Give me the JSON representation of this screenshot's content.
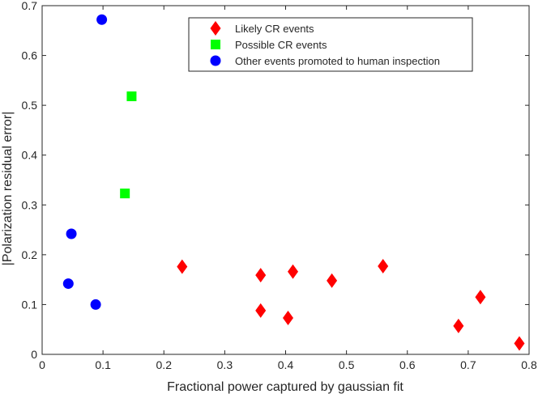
{
  "chart_data": {
    "type": "scatter",
    "title": "",
    "xlabel": "Fractional power captured by gaussian fit",
    "ylabel": "|Polarization residual error|",
    "xlim": [
      0,
      0.8
    ],
    "ylim": [
      0,
      0.7
    ],
    "xticks": [
      "0",
      "0.1",
      "0.2",
      "0.3",
      "0.4",
      "0.5",
      "0.6",
      "0.7",
      "0.8"
    ],
    "yticks": [
      "0",
      "0.1",
      "0.2",
      "0.3",
      "0.4",
      "0.5",
      "0.6",
      "0.7"
    ],
    "grid": false,
    "legend_position": "top-right",
    "series": [
      {
        "name": "Likely CR events",
        "marker": "diamond",
        "color": "#ff0000",
        "points": [
          {
            "x": 0.23,
            "y": 0.176
          },
          {
            "x": 0.359,
            "y": 0.159
          },
          {
            "x": 0.359,
            "y": 0.088
          },
          {
            "x": 0.412,
            "y": 0.166
          },
          {
            "x": 0.404,
            "y": 0.073
          },
          {
            "x": 0.476,
            "y": 0.148
          },
          {
            "x": 0.56,
            "y": 0.177
          },
          {
            "x": 0.684,
            "y": 0.057
          },
          {
            "x": 0.72,
            "y": 0.115
          },
          {
            "x": 0.784,
            "y": 0.022
          }
        ]
      },
      {
        "name": "Possible CR events",
        "marker": "square",
        "color": "#00ff00",
        "points": [
          {
            "x": 0.147,
            "y": 0.518
          },
          {
            "x": 0.136,
            "y": 0.323
          }
        ]
      },
      {
        "name": "Other events promoted to human inspection",
        "marker": "circle",
        "color": "#0000ff",
        "points": [
          {
            "x": 0.098,
            "y": 0.672
          },
          {
            "x": 0.048,
            "y": 0.242
          },
          {
            "x": 0.043,
            "y": 0.142
          },
          {
            "x": 0.088,
            "y": 0.1
          }
        ]
      }
    ]
  }
}
